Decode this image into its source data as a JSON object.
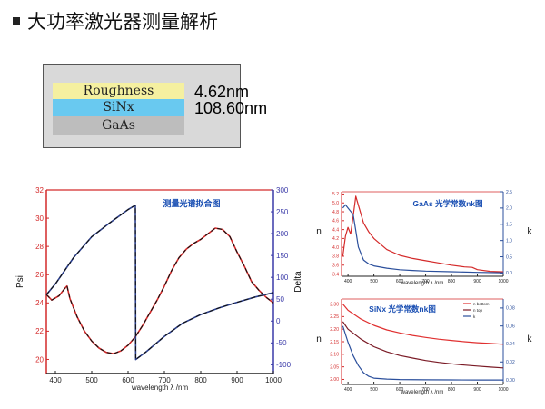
{
  "header": {
    "title": "大功率激光器测量解析"
  },
  "layer_stack": {
    "layers": [
      {
        "name": "Roughness",
        "color": "#f5f0a0",
        "thickness": "4.62nm"
      },
      {
        "name": "SiNx",
        "color": "#69c9f0",
        "thickness": "108.60nm"
      },
      {
        "name": "GaAs",
        "color": "#bdbdbd",
        "thickness": ""
      }
    ]
  },
  "chart_data": [
    {
      "id": "fit",
      "type": "line",
      "title": "测量光谱拟合图",
      "xlabel": "wavelength λ /nm",
      "ylabel": "Psi",
      "y2label": "Delta",
      "xlim": [
        375,
        1000
      ],
      "ylim": [
        19,
        32
      ],
      "y2lim": [
        -120,
        300
      ],
      "xticks": [
        400,
        500,
        600,
        700,
        800,
        900,
        1000
      ],
      "yticks": [
        20,
        22,
        24,
        26,
        28,
        30,
        32
      ],
      "y2ticks": [
        -100,
        -50,
        0,
        50,
        100,
        150,
        200,
        250,
        300
      ],
      "grid": false,
      "series": [
        {
          "measure": "Psi",
          "axis": "left",
          "color": "#d42a2a",
          "style": "solid",
          "x": [
            375,
            390,
            410,
            425,
            432,
            440,
            460,
            480,
            500,
            520,
            540,
            560,
            580,
            600,
            620,
            640,
            660,
            680,
            700,
            720,
            740,
            760,
            780,
            800,
            820,
            840,
            860,
            880,
            900,
            920,
            940,
            960,
            980,
            1000
          ],
          "y": [
            24.6,
            24.2,
            24.5,
            25.0,
            25.2,
            24.3,
            23.0,
            22.0,
            21.3,
            20.8,
            20.5,
            20.4,
            20.6,
            21.0,
            21.6,
            22.4,
            23.3,
            24.2,
            25.2,
            26.3,
            27.2,
            27.8,
            28.2,
            28.5,
            28.9,
            29.3,
            29.2,
            28.7,
            27.6,
            26.6,
            25.5,
            24.9,
            24.4,
            24.0
          ]
        },
        {
          "measure": "Delta",
          "axis": "right",
          "color": "#2b3f8c",
          "style": "solid",
          "x": [
            375,
            400,
            450,
            500,
            550,
            600,
            620,
            621,
            650,
            700,
            750,
            800,
            850,
            900,
            950,
            1000
          ],
          "y": [
            60,
            85,
            145,
            193,
            225,
            255,
            265,
            -88,
            -70,
            -35,
            -5,
            15,
            30,
            43,
            55,
            65
          ]
        }
      ]
    },
    {
      "id": "gaas",
      "type": "line",
      "title": "GaAs 光学常数nk图",
      "xlabel": "wavelength λ /nm",
      "ylabel": "n",
      "y2label": "k",
      "xlim": [
        375,
        1000
      ],
      "ylim": [
        3.35,
        5.25
      ],
      "y2lim": [
        -0.1,
        2.5
      ],
      "xticks": [
        400,
        500,
        600,
        700,
        800,
        900,
        1000
      ],
      "yticks": [
        3.4,
        3.6,
        3.8,
        4.0,
        4.2,
        4.4,
        4.6,
        4.8,
        5.0,
        5.2
      ],
      "y2ticks": [
        0.0,
        0.5,
        1.0,
        1.5,
        2.0,
        2.5
      ],
      "grid": false,
      "series": [
        {
          "name": "n",
          "axis": "left",
          "color": "#d42a2a",
          "x": [
            380,
            390,
            400,
            410,
            420,
            430,
            440,
            460,
            480,
            500,
            550,
            600,
            650,
            700,
            750,
            800,
            850,
            880,
            900,
            950,
            1000
          ],
          "y": [
            3.8,
            4.25,
            4.45,
            4.3,
            4.7,
            5.15,
            4.95,
            4.55,
            4.35,
            4.2,
            3.95,
            3.82,
            3.75,
            3.7,
            3.65,
            3.6,
            3.56,
            3.55,
            3.5,
            3.46,
            3.45
          ]
        },
        {
          "name": "k",
          "axis": "right",
          "color": "#2b4f9c",
          "x": [
            380,
            390,
            400,
            410,
            420,
            430,
            440,
            460,
            480,
            500,
            550,
            600,
            650,
            700,
            800,
            900,
            1000
          ],
          "y": [
            2.0,
            2.1,
            2.0,
            1.9,
            1.8,
            1.3,
            0.8,
            0.4,
            0.28,
            0.22,
            0.15,
            0.1,
            0.08,
            0.06,
            0.04,
            0.02,
            0.01
          ]
        }
      ]
    },
    {
      "id": "sinx",
      "type": "line",
      "title": "SiNx 光学常数nk图",
      "xlabel": "wavelength λ /nm",
      "ylabel": "n",
      "y2label": "k",
      "xlim": [
        375,
        1000
      ],
      "ylim": [
        1.98,
        2.32
      ],
      "y2lim": [
        -0.005,
        0.09
      ],
      "xticks": [
        400,
        500,
        600,
        700,
        800,
        900,
        1000
      ],
      "yticks": [
        2.0,
        2.05,
        2.1,
        2.15,
        2.2,
        2.25,
        2.3
      ],
      "y2ticks": [
        0.0,
        0.02,
        0.04,
        0.06,
        0.08
      ],
      "grid": false,
      "legend": {
        "placement": "top-right",
        "entries": [
          "n bottom",
          "n top",
          "k"
        ]
      },
      "series": [
        {
          "name": "n bottom",
          "axis": "left",
          "color": "#e03030",
          "x": [
            380,
            400,
            450,
            500,
            550,
            600,
            650,
            700,
            750,
            800,
            850,
            900,
            950,
            1000
          ],
          "y": [
            2.3,
            2.275,
            2.24,
            2.215,
            2.197,
            2.185,
            2.175,
            2.167,
            2.16,
            2.155,
            2.15,
            2.146,
            2.143,
            2.14
          ]
        },
        {
          "name": "n top",
          "axis": "left",
          "color": "#7a1a25",
          "x": [
            380,
            400,
            450,
            500,
            550,
            600,
            650,
            700,
            750,
            800,
            850,
            900,
            950,
            1000
          ],
          "y": [
            2.23,
            2.2,
            2.16,
            2.13,
            2.11,
            2.095,
            2.085,
            2.075,
            2.068,
            2.062,
            2.057,
            2.053,
            2.049,
            2.046
          ]
        },
        {
          "name": "k",
          "axis": "right",
          "color": "#2b4f9c",
          "x": [
            380,
            400,
            420,
            440,
            460,
            480,
            500,
            550,
            600,
            700,
            800,
            900,
            1000
          ],
          "y": [
            0.06,
            0.042,
            0.027,
            0.016,
            0.008,
            0.004,
            0.002,
            0.001,
            0.0005,
            0.0002,
            0.0001,
            0.0,
            0.0
          ]
        }
      ]
    }
  ]
}
